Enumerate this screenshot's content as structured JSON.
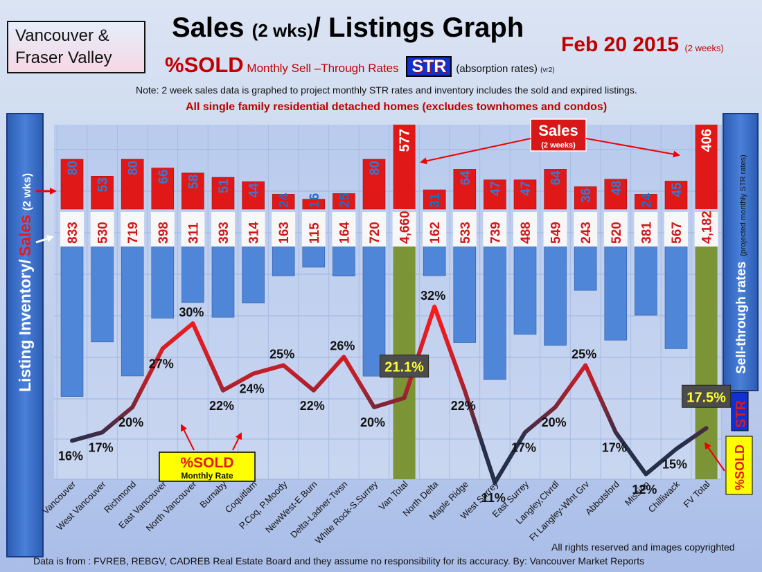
{
  "header": {
    "region_line1": "Vancouver &",
    "region_line2": "Fraser Valley",
    "title_main": "Sales ",
    "title_small": "(2 wks)",
    "title_rest": "/ Listings Graph",
    "date": "Feb 20 2015 ",
    "date_note": "(2 weeks)",
    "subtitle_sold": "%SOLD",
    "subtitle_text": " Monthly Sell –Through Rates ",
    "str_badge": "STR",
    "subtitle_absorption": "(absorption rates) ",
    "subtitle_version": "(vr2)",
    "note": "Note: 2 week sales data is graphed to project monthly STR rates and inventory includes the sold and expired listings.",
    "note2": "All single family residential detached homes (excludes townhomes and condos)"
  },
  "footer": {
    "copyright": "All rights reserved and  images copyrighted",
    "source": "Data is from : FVREB, REBGV, CADREB Real Estate Board and they assume no responsibility for its accuracy. By: Vancouver Market Reports"
  },
  "colors": {
    "sales_bar": "#e01818",
    "inventory_bar": "#4f86d8",
    "total_bar": "#7a9436",
    "line_high": "#e81c1c",
    "line_low": "#2a3450",
    "panel": "#3c6fc8"
  },
  "chart_data": {
    "type": "bar",
    "left_axis_label_1": "Listing Inventory/",
    "left_axis_label_2": "Sales",
    "left_axis_label_3": "(2 wks)",
    "right_axis_label_1": "Sell-through  rates",
    "right_axis_label_2": "(projected monthly STR rates)",
    "right_str": "STR",
    "right_sold": "%SOLD",
    "sales_callout": "Sales",
    "sales_callout_sub": "(2 weeks)",
    "sold_callout": "%SOLD",
    "sold_callout_sub": "Monthly Rate",
    "categories": [
      "Vancouver",
      "West Vancouver",
      "Richmond",
      "East Vancouver",
      "North Vancouver",
      "Burnaby",
      "Coquitlam",
      "P.Coq, P.Moody",
      "NewWest-E.Burn",
      "Delta-Ladner-Twsn",
      "White Rock-S.Surrey",
      "Van Total",
      "North Delta",
      "Maple Ridge",
      "West Surrey",
      "East Surrey",
      "Langley,Clvrdl",
      "Ft Langley-Wlnt Grv",
      "Abbotsford",
      "Mission",
      "Chilliwack",
      "FV Total"
    ],
    "series": [
      {
        "name": "Sales",
        "values": [
          80,
          53,
          80,
          66,
          58,
          51,
          44,
          24,
          16,
          25,
          80,
          577,
          31,
          64,
          47,
          47,
          64,
          36,
          48,
          24,
          45,
          406
        ],
        "labels": [
          "80",
          "53",
          "80",
          "66",
          "58",
          "51",
          "44",
          "24",
          "16",
          "25",
          "80",
          "577",
          "31",
          "64",
          "47",
          "47",
          "64",
          "36",
          "48",
          "24",
          "45",
          "406"
        ]
      },
      {
        "name": "Listing Inventory",
        "values": [
          833,
          530,
          719,
          398,
          311,
          393,
          314,
          163,
          115,
          164,
          720,
          4660,
          162,
          533,
          739,
          488,
          549,
          243,
          520,
          381,
          567,
          4182
        ],
        "labels": [
          "833",
          "530",
          "719",
          "398",
          "311",
          "393",
          "314",
          "163",
          "115",
          "164",
          "720",
          "4,660",
          "162",
          "533",
          "739",
          "488",
          "549",
          "243",
          "520",
          "381",
          "567",
          "4,182"
        ]
      },
      {
        "name": "%SOLD",
        "values": [
          16,
          17,
          20,
          27,
          30,
          22,
          24,
          25,
          22,
          26,
          20,
          21.1,
          32,
          22,
          11,
          17,
          20,
          25,
          17,
          12,
          15,
          17.5
        ],
        "labels": [
          "16%",
          "17%",
          "20%",
          "27%",
          "30%",
          "22%",
          "24%",
          "25%",
          "22%",
          "26%",
          "20%",
          "21.1%",
          "32%",
          "22%",
          "11%",
          "17%",
          "20%",
          "25%",
          "17%",
          "12%",
          "15%",
          "17.5%"
        ]
      }
    ],
    "totals": [
      "Van Total",
      "FV Total"
    ]
  }
}
